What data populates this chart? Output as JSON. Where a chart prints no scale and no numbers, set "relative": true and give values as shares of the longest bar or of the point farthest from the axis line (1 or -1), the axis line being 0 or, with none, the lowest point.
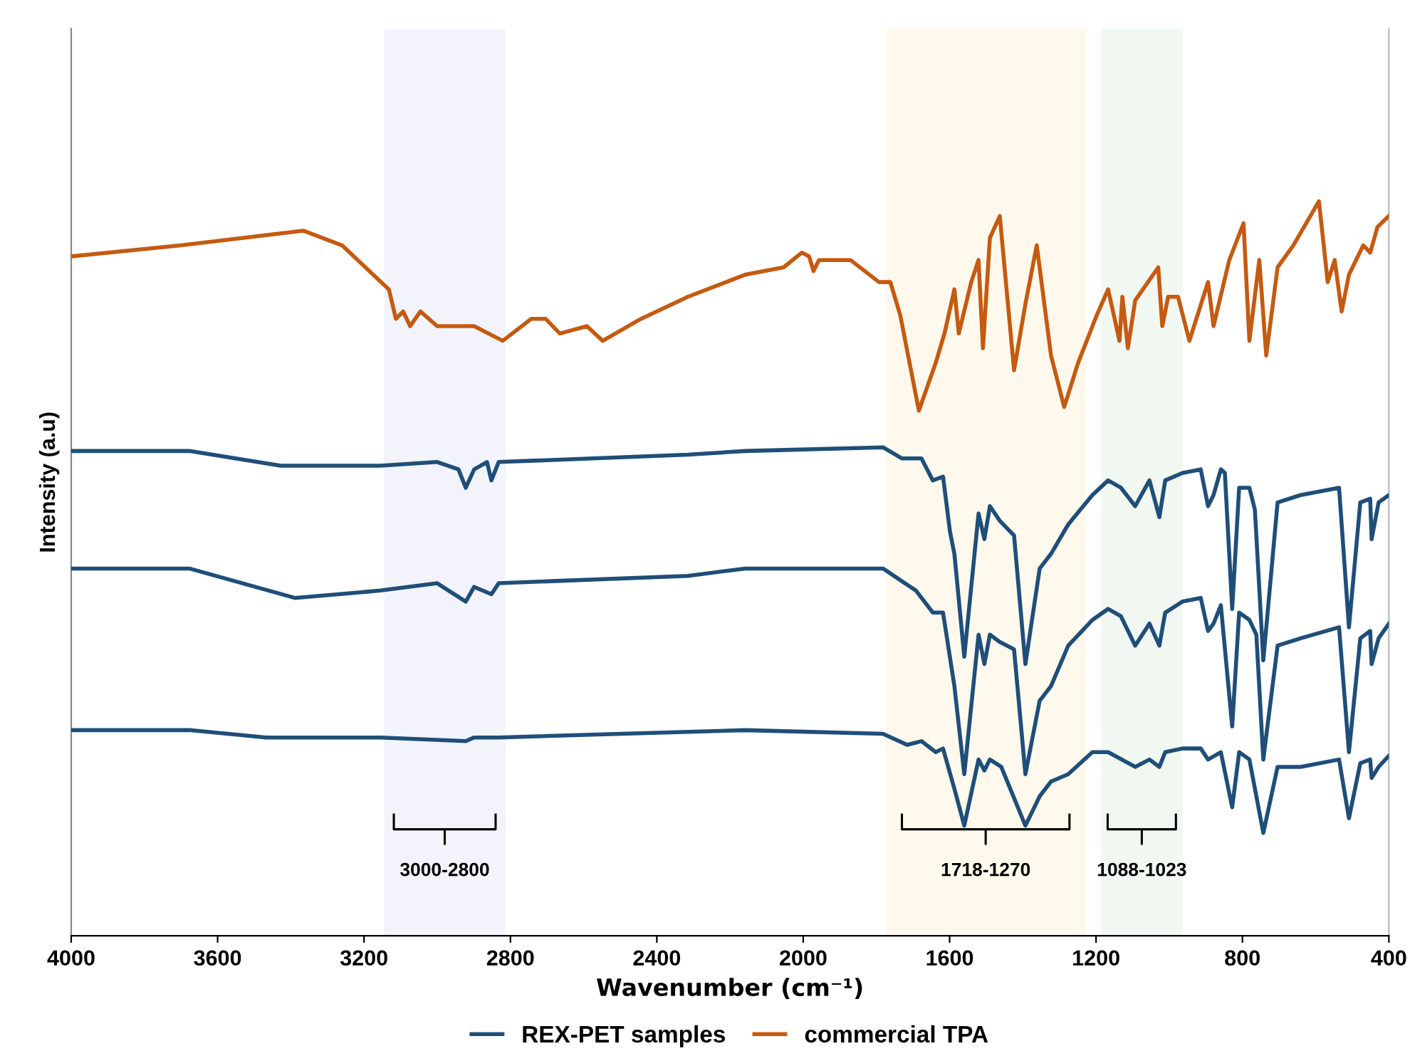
{
  "chart_data": {
    "type": "line",
    "relative": true,
    "xlabel": "Wavenumber (cm⁻¹)",
    "ylabel": "Intensity (a.u)",
    "xlim": [
      4000,
      400
    ],
    "xticks": [
      4000,
      3600,
      3200,
      2800,
      2400,
      2000,
      1600,
      1200,
      800,
      400
    ],
    "legend": "bottom",
    "grid": false,
    "line_style": "solid",
    "marker": "none",
    "bands": [
      {
        "axis": "x",
        "from": 3145,
        "to": 2814,
        "label": "3000-2800",
        "color": "#f3f4fb"
      },
      {
        "axis": "x",
        "from": 1774,
        "to": 1229,
        "label": "1718-1270",
        "color": "#fef9ec"
      },
      {
        "axis": "x",
        "from": 1186,
        "to": 964,
        "label": "1088-1023",
        "color": "#f1f7f1"
      }
    ],
    "series": [
      {
        "name": "REX-PET samples",
        "color": "#1f4e79",
        "x": [
          4000,
          3677,
          3428,
          3155,
          3000,
          2942,
          2922,
          2899,
          2864,
          2852,
          2832,
          2315,
          2159,
          1782,
          1731,
          1677,
          1646,
          1618,
          1599,
          1587,
          1560,
          1521,
          1505,
          1490,
          1463,
          1424,
          1393,
          1354,
          1323,
          1276,
          1210,
          1167,
          1132,
          1093,
          1054,
          1027,
          1011,
          964,
          914,
          894,
          879,
          859,
          848,
          828,
          809,
          781,
          766,
          743,
          704,
          641,
          536,
          509,
          478,
          451,
          447,
          428,
          400
        ],
        "values": [
          0.66,
          0.66,
          0.64,
          0.64,
          0.645,
          0.635,
          0.61,
          0.635,
          0.645,
          0.62,
          0.645,
          0.655,
          0.66,
          0.665,
          0.65,
          0.65,
          0.62,
          0.625,
          0.55,
          0.52,
          0.38,
          0.575,
          0.54,
          0.585,
          0.565,
          0.545,
          0.37,
          0.5,
          0.52,
          0.56,
          0.6,
          0.62,
          0.61,
          0.585,
          0.62,
          0.57,
          0.62,
          0.63,
          0.635,
          0.585,
          0.6,
          0.635,
          0.63,
          0.445,
          0.61,
          0.61,
          0.58,
          0.375,
          0.59,
          0.6,
          0.61,
          0.42,
          0.59,
          0.595,
          0.54,
          0.59,
          0.6
        ]
      },
      {
        "color": "#1f4e79",
        "x": [
          4000,
          3677,
          3389,
          3155,
          3000,
          2922,
          2899,
          2852,
          2832,
          2315,
          2159,
          1782,
          1692,
          1646,
          1618,
          1587,
          1560,
          1521,
          1505,
          1490,
          1463,
          1424,
          1393,
          1354,
          1323,
          1276,
          1210,
          1167,
          1132,
          1093,
          1054,
          1027,
          1011,
          964,
          914,
          894,
          879,
          859,
          828,
          809,
          781,
          762,
          743,
          704,
          641,
          536,
          509,
          478,
          451,
          447,
          428,
          400
        ],
        "values": [
          0.5,
          0.5,
          0.46,
          0.47,
          0.48,
          0.455,
          0.475,
          0.465,
          0.48,
          0.49,
          0.5,
          0.5,
          0.47,
          0.44,
          0.44,
          0.34,
          0.22,
          0.41,
          0.37,
          0.41,
          0.4,
          0.39,
          0.22,
          0.32,
          0.34,
          0.395,
          0.43,
          0.445,
          0.435,
          0.395,
          0.425,
          0.395,
          0.44,
          0.455,
          0.46,
          0.415,
          0.425,
          0.45,
          0.285,
          0.44,
          0.43,
          0.41,
          0.24,
          0.395,
          0.405,
          0.42,
          0.25,
          0.405,
          0.415,
          0.37,
          0.405,
          0.425
        ]
      },
      {
        "color": "#1f4e79",
        "x": [
          4000,
          3677,
          3467,
          3155,
          2922,
          2899,
          2852,
          2832,
          2159,
          1782,
          1716,
          1677,
          1638,
          1618,
          1587,
          1560,
          1521,
          1505,
          1490,
          1459,
          1393,
          1354,
          1323,
          1276,
          1210,
          1167,
          1093,
          1054,
          1027,
          1011,
          964,
          914,
          894,
          859,
          828,
          809,
          781,
          743,
          704,
          641,
          536,
          509,
          478,
          451,
          447,
          428,
          400
        ],
        "values": [
          0.28,
          0.28,
          0.27,
          0.27,
          0.265,
          0.27,
          0.27,
          0.27,
          0.28,
          0.275,
          0.26,
          0.265,
          0.25,
          0.255,
          0.2,
          0.15,
          0.24,
          0.225,
          0.24,
          0.23,
          0.15,
          0.19,
          0.21,
          0.22,
          0.25,
          0.25,
          0.23,
          0.24,
          0.23,
          0.25,
          0.255,
          0.255,
          0.24,
          0.25,
          0.175,
          0.25,
          0.24,
          0.14,
          0.23,
          0.23,
          0.24,
          0.16,
          0.235,
          0.24,
          0.215,
          0.23,
          0.245
        ]
      },
      {
        "name": "commercial TPA",
        "color": "#c55a11",
        "x": [
          4000,
          3700,
          3366,
          3260,
          3132,
          3113,
          3093,
          3074,
          3046,
          3000,
          2899,
          2821,
          2743,
          2704,
          2665,
          2591,
          2548,
          2443,
          2315,
          2159,
          2054,
          2004,
          1984,
          1972,
          1957,
          1871,
          1793,
          1762,
          1735,
          1684,
          1638,
          1614,
          1587,
          1575,
          1541,
          1521,
          1509,
          1490,
          1463,
          1424,
          1393,
          1362,
          1323,
          1287,
          1249,
          1198,
          1167,
          1136,
          1128,
          1113,
          1093,
          1030,
          1019,
          1003,
          976,
          945,
          894,
          879,
          836,
          797,
          781,
          754,
          735,
          704,
          661,
          591,
          567,
          548,
          529,
          509,
          470,
          451,
          431,
          400
        ],
        "values": [
          0.925,
          0.94,
          0.96,
          0.94,
          0.88,
          0.84,
          0.85,
          0.83,
          0.85,
          0.83,
          0.83,
          0.81,
          0.84,
          0.84,
          0.82,
          0.83,
          0.81,
          0.84,
          0.87,
          0.9,
          0.91,
          0.93,
          0.925,
          0.905,
          0.92,
          0.92,
          0.89,
          0.89,
          0.845,
          0.715,
          0.78,
          0.82,
          0.88,
          0.82,
          0.89,
          0.92,
          0.8,
          0.95,
          0.98,
          0.77,
          0.86,
          0.94,
          0.79,
          0.72,
          0.78,
          0.845,
          0.88,
          0.81,
          0.87,
          0.8,
          0.865,
          0.91,
          0.83,
          0.87,
          0.87,
          0.81,
          0.89,
          0.83,
          0.92,
          0.97,
          0.81,
          0.92,
          0.79,
          0.91,
          0.94,
          1.0,
          0.89,
          0.92,
          0.85,
          0.9,
          0.94,
          0.93,
          0.965,
          0.98
        ]
      }
    ]
  }
}
